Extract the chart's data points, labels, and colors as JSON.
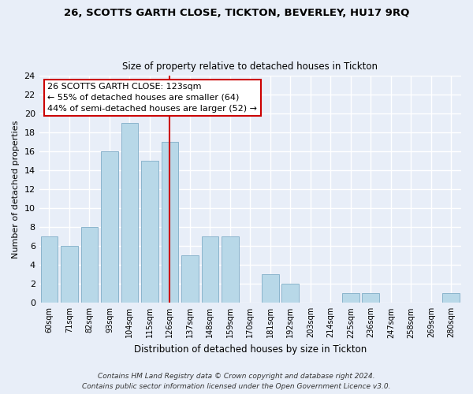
{
  "title1": "26, SCOTTS GARTH CLOSE, TICKTON, BEVERLEY, HU17 9RQ",
  "title2": "Size of property relative to detached houses in Tickton",
  "xlabel": "Distribution of detached houses by size in Tickton",
  "ylabel": "Number of detached properties",
  "bar_labels": [
    "60sqm",
    "71sqm",
    "82sqm",
    "93sqm",
    "104sqm",
    "115sqm",
    "126sqm",
    "137sqm",
    "148sqm",
    "159sqm",
    "170sqm",
    "181sqm",
    "192sqm",
    "203sqm",
    "214sqm",
    "225sqm",
    "236sqm",
    "247sqm",
    "258sqm",
    "269sqm",
    "280sqm"
  ],
  "bar_values": [
    7,
    6,
    8,
    16,
    19,
    15,
    17,
    5,
    7,
    7,
    0,
    3,
    2,
    0,
    0,
    1,
    1,
    0,
    0,
    0,
    1
  ],
  "bar_color": "#b8d8e8",
  "bar_edge_color": "#8ab4cc",
  "reference_line_x": 6,
  "reference_line_color": "#cc0000",
  "ylim": [
    0,
    24
  ],
  "yticks": [
    0,
    2,
    4,
    6,
    8,
    10,
    12,
    14,
    16,
    18,
    20,
    22,
    24
  ],
  "annotation_title": "26 SCOTTS GARTH CLOSE: 123sqm",
  "annotation_line1": "← 55% of detached houses are smaller (64)",
  "annotation_line2": "44% of semi-detached houses are larger (52) →",
  "annotation_box_color": "#ffffff",
  "annotation_box_edge": "#cc0000",
  "footnote1": "Contains HM Land Registry data © Crown copyright and database right 2024.",
  "footnote2": "Contains public sector information licensed under the Open Government Licence v3.0.",
  "bg_color": "#e8eef8",
  "grid_color": "#ffffff"
}
